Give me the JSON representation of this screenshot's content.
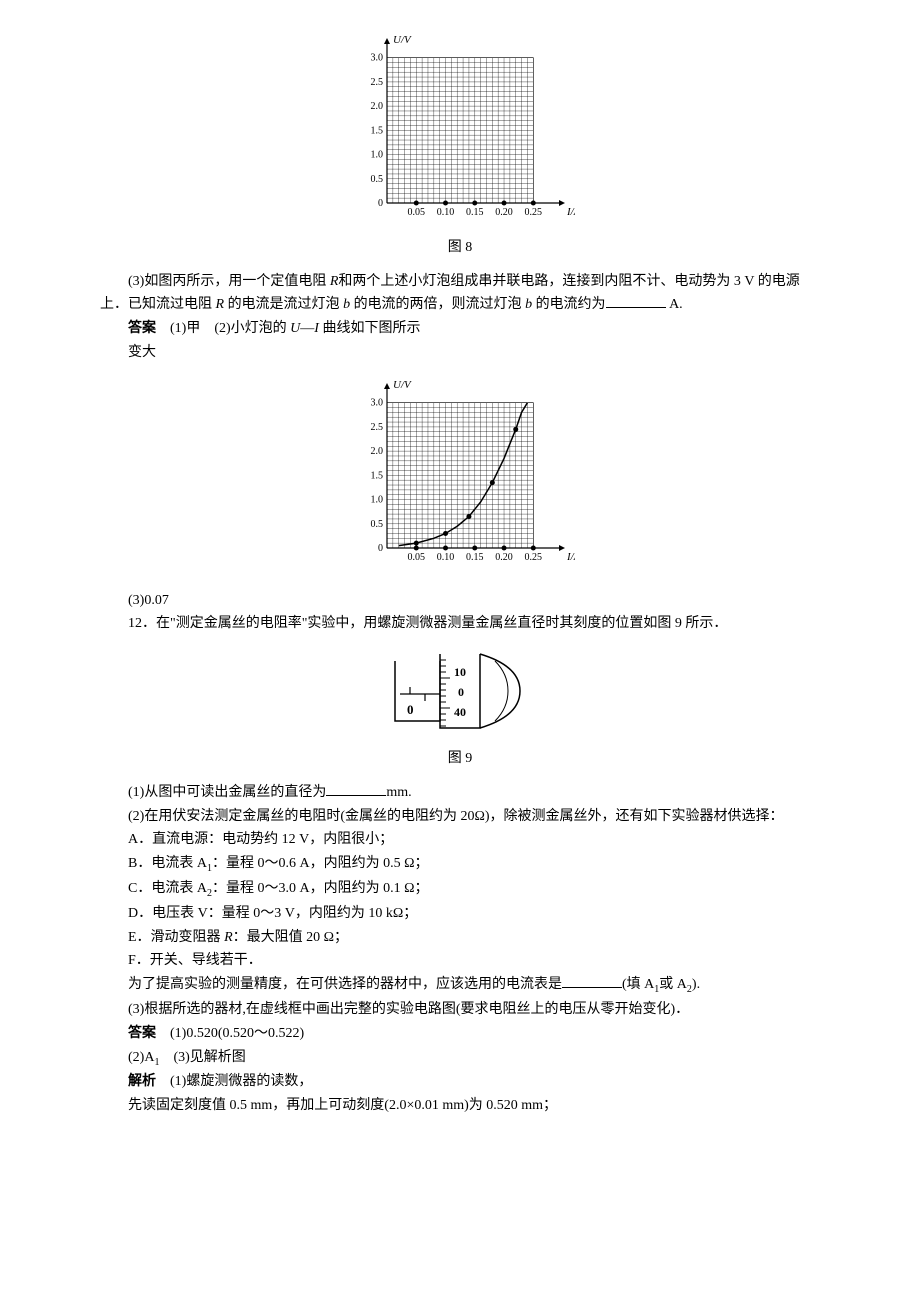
{
  "chart1": {
    "type": "scatter-grid",
    "xlabel": "I/A",
    "ylabel": "U/V",
    "xlim": [
      0,
      0.27
    ],
    "ylim": [
      0,
      3.2
    ],
    "xticks": [
      "0.05",
      "0.10",
      "0.15",
      "0.20",
      "0.25"
    ],
    "xtick_values": [
      0.05,
      0.1,
      0.15,
      0.2,
      0.25
    ],
    "yticks": [
      "0",
      "0.5",
      "1.0",
      "1.5",
      "2.0",
      "2.5",
      "3.0"
    ],
    "ytick_values": [
      0,
      0.5,
      1.0,
      1.5,
      2.0,
      2.5,
      3.0
    ],
    "grid_minor_x": 0.01,
    "grid_minor_y": 0.1,
    "grid_color": "#000000",
    "grid_width": 0.4,
    "background_color": "#ffffff",
    "caption": "图 8",
    "points": [
      {
        "x": 0.05,
        "y": 0
      },
      {
        "x": 0.1,
        "y": 0
      },
      {
        "x": 0.15,
        "y": 0
      },
      {
        "x": 0.2,
        "y": 0
      },
      {
        "x": 0.25,
        "y": 0
      }
    ],
    "point_color": "#000000",
    "point_radius": 2.5,
    "axis_fontsize": 10,
    "label_fontsize": 11
  },
  "q3": {
    "text_part1": "(3)如图丙所示，用一个定值电阻 ",
    "R": "R",
    "text_part2": "和两个上述小灯泡组成串并联电路，连接到内阻不计、电动势为 3 V 的电源上．已知流过电阻 ",
    "text_part3": " 的电流是流过灯泡 ",
    "b": "b",
    "text_part4": " 的电流的两倍，则流过灯泡 ",
    "text_part5": " 的电流约为",
    "unit": " A."
  },
  "answer_line": {
    "label": "答案",
    "a1": "(1)甲",
    "a2": "(2)小灯泡的 ",
    "U": "U",
    "dash": "—",
    "I": "I",
    "a2_end": " 曲线如下图所示",
    "a2_next": "变大"
  },
  "chart2": {
    "type": "line",
    "xlabel": "I/A",
    "ylabel": "U/V",
    "xlim": [
      0,
      0.27
    ],
    "ylim": [
      0,
      3.2
    ],
    "xticks": [
      "0.05",
      "0.10",
      "0.15",
      "0.20",
      "0.25"
    ],
    "xtick_values": [
      0.05,
      0.1,
      0.15,
      0.2,
      0.25
    ],
    "yticks": [
      "0",
      "0.5",
      "1.0",
      "1.5",
      "2.0",
      "2.5",
      "3.0"
    ],
    "ytick_values": [
      0,
      0.5,
      1.0,
      1.5,
      2.0,
      2.5,
      3.0
    ],
    "grid_minor_x": 0.01,
    "grid_minor_y": 0.1,
    "grid_color": "#000000",
    "background_color": "#ffffff",
    "curve_points": [
      {
        "x": 0.02,
        "y": 0.05
      },
      {
        "x": 0.05,
        "y": 0.1
      },
      {
        "x": 0.08,
        "y": 0.2
      },
      {
        "x": 0.1,
        "y": 0.3
      },
      {
        "x": 0.12,
        "y": 0.45
      },
      {
        "x": 0.14,
        "y": 0.65
      },
      {
        "x": 0.16,
        "y": 0.95
      },
      {
        "x": 0.18,
        "y": 1.35
      },
      {
        "x": 0.2,
        "y": 1.85
      },
      {
        "x": 0.22,
        "y": 2.45
      },
      {
        "x": 0.23,
        "y": 2.8
      },
      {
        "x": 0.24,
        "y": 3.0
      }
    ],
    "curve_color": "#000000",
    "curve_width": 1.5,
    "points": [
      {
        "x": 0.05,
        "y": 0.1
      },
      {
        "x": 0.1,
        "y": 0.3
      },
      {
        "x": 0.14,
        "y": 0.65
      },
      {
        "x": 0.18,
        "y": 1.35
      },
      {
        "x": 0.22,
        "y": 2.45
      }
    ],
    "axis_points": [
      {
        "x": 0.05,
        "y": 0
      },
      {
        "x": 0.1,
        "y": 0
      },
      {
        "x": 0.15,
        "y": 0
      },
      {
        "x": 0.2,
        "y": 0
      },
      {
        "x": 0.25,
        "y": 0
      }
    ],
    "point_color": "#000000",
    "point_radius": 2.5,
    "axis_fontsize": 10,
    "label_fontsize": 11
  },
  "a3": "(3)0.07",
  "q12": {
    "num": "12．",
    "text": "在\"测定金属丝的电阻率\"实验中，用螺旋测微器测量金属丝直径时其刻度的位置如图 9 所示．"
  },
  "micrometer": {
    "main_scale": "0",
    "thimble_top": "10",
    "thimble_mid": "0",
    "thimble_bot": "40",
    "caption": "图 9",
    "line_color": "#000000",
    "background_color": "#ffffff"
  },
  "q12_1": {
    "text": "(1)从图中可读出金属丝的直径为",
    "unit": "mm."
  },
  "q12_2": "(2)在用伏安法测定金属丝的电阻时(金属丝的电阻约为 20Ω)，除被测金属丝外，还有如下实验器材供选择：",
  "options": {
    "A": "A．直流电源：电动势约 12 V，内阻很小；",
    "B_pre": "B．电流表 A",
    "B_sub": "1",
    "B_post": "：量程 0～0.6 A，内阻约为 0.5 Ω；",
    "C_pre": "C．电流表 A",
    "C_sub": "2",
    "C_post": "：量程 0～3.0 A，内阻约为 0.1 Ω；",
    "D": "D．电压表 V：量程 0～3 V，内阻约为 10 kΩ；",
    "E_pre": "E．滑动变阻器 ",
    "E_R": "R",
    "E_post": "：最大阻值 20 Ω；",
    "F": "F．开关、导线若干．"
  },
  "q12_2_ask": {
    "text": "为了提高实验的测量精度，在可供选择的器材中，应该选用的电流表是",
    "hint_pre": "(填 A",
    "hint_sub1": "1",
    "hint_mid": "或 A",
    "hint_sub2": "2",
    "hint_end": ")."
  },
  "q12_3": "(3)根据所选的器材,在虚线框中画出完整的实验电路图(要求电阻丝上的电压从零开始变化)．",
  "answer2": {
    "label": "答案",
    "a1": "(1)0.520(0.520～0.522)",
    "a2_pre": "(2)A",
    "a2_sub": "1",
    "a3": "(3)见解析图"
  },
  "explain": {
    "label": "解析",
    "e1": "(1)螺旋测微器的读数，",
    "e2": "先读固定刻度值 0.5 mm，再加上可动刻度(2.0×0.01 mm)为 0.520 mm；"
  }
}
